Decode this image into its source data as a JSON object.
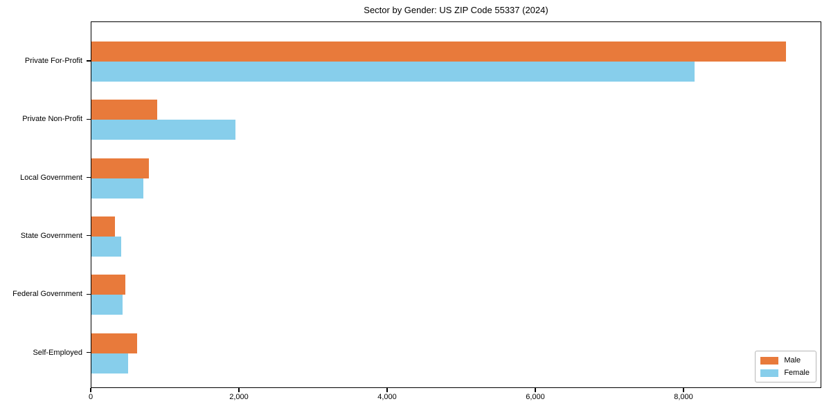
{
  "title": "Sector by Gender: US ZIP Code 55337 (2024)",
  "chart_data": {
    "type": "bar",
    "orientation": "horizontal",
    "title": "Sector by Gender: US ZIP Code 55337 (2024)",
    "categories": [
      "Private For-Profit",
      "Private Non-Profit",
      "Local Government",
      "State Government",
      "Federal Government",
      "Self-Employed"
    ],
    "series": [
      {
        "name": "Male",
        "color": "#e87a3b",
        "values": [
          9390,
          890,
          775,
          320,
          455,
          615
        ]
      },
      {
        "name": "Female",
        "color": "#87ceeb",
        "values": [
          8160,
          1945,
          705,
          400,
          420,
          495
        ]
      }
    ],
    "xlim": [
      0,
      9860
    ],
    "x_ticks": [
      0,
      2000,
      4000,
      6000,
      8000
    ],
    "x_tick_labels": [
      "0",
      "2,000",
      "4,000",
      "6,000",
      "8,000"
    ],
    "xlabel": "",
    "ylabel": "",
    "grid": false,
    "legend_position": "lower right"
  },
  "legend": {
    "items": [
      {
        "label": "Male",
        "color": "#e87a3b"
      },
      {
        "label": "Female",
        "color": "#87ceeb"
      }
    ]
  }
}
